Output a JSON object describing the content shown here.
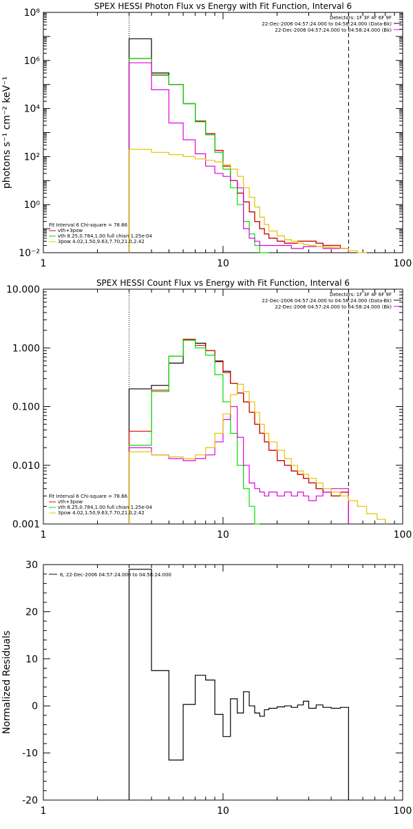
{
  "chart_data": [
    {
      "type": "step",
      "title": "SPEX HESSI Photon Flux vs Energy with Fit Function, Interval 6",
      "ylabel": "photons s⁻¹ cm⁻² keV⁻¹",
      "xlabel": "",
      "xscale": "log",
      "yscale": "log",
      "xlim": [
        1,
        100
      ],
      "ylim": [
        0.01,
        100000000
      ],
      "xticks": [
        "1",
        "10",
        "100"
      ],
      "yticks": [
        "10⁸",
        "10⁶",
        "10⁴",
        "10²",
        "10⁰",
        "10⁻²"
      ],
      "vlines": [
        {
          "x": 3.0,
          "style": "dotted"
        },
        {
          "x": 50.0,
          "style": "dashed"
        }
      ],
      "legend_top": [
        "Detectors: 1F 3F 4F 6F 9F",
        "22-Dec-2006 04:57:24.000 to 04:58:24.000 (Data-Bk)",
        "22-Dec-2006 04:57:24.000 to 04:58:24.000 (Bk)"
      ],
      "legend_bottom": [
        "Fit Interval 6   Chi-square = 78.66",
        "vth+3pow",
        "vth 8.25,0.784,1.00  full chian 1.25e-04",
        "3pow 4.02,1.50,9.63,7.70,21.0,2.42"
      ],
      "edges": [
        3,
        4,
        5,
        6,
        7,
        8,
        9,
        10,
        11,
        12,
        13,
        14,
        15,
        16,
        17,
        18,
        20,
        22,
        24,
        26,
        28,
        30,
        33,
        36,
        40,
        45,
        50,
        56,
        63
      ],
      "series": [
        {
          "color": "#000000",
          "values": [
            8000000,
            300000,
            100000,
            16000,
            3000,
            900,
            180,
            40,
            10,
            3,
            1.3,
            0.5,
            0.2,
            0.1,
            0.06,
            0.04,
            0.03,
            0.025,
            0.025,
            0.03,
            0.03,
            0.03,
            0.025,
            0.02,
            0.02,
            0.015,
            null,
            null
          ]
        },
        {
          "color": "#e60000",
          "values": [
            1200000,
            250000,
            100000,
            16000,
            3000,
            900,
            180,
            40,
            10,
            3,
            1.3,
            0.5,
            0.2,
            0.1,
            0.06,
            0.04,
            0.03,
            0.025,
            0.025,
            0.03,
            0.03,
            0.03,
            0.025,
            0.02,
            0.02,
            0.015,
            null,
            null
          ]
        },
        {
          "color": "#00dd00",
          "values": [
            1200000,
            240000,
            100000,
            16000,
            2800,
            800,
            150,
            30,
            5,
            1,
            0.2,
            0.06,
            0.02,
            0.01,
            0.005,
            null,
            null,
            null,
            null,
            null,
            null,
            null,
            null,
            null,
            null,
            null,
            null,
            null
          ]
        },
        {
          "color": "#dd00dd",
          "values": [
            800000,
            60000,
            2500,
            500,
            130,
            40,
            20,
            15,
            10,
            5,
            0.1,
            0.04,
            0.03,
            0.02,
            0.02,
            0.02,
            0.02,
            0.02,
            0.015,
            0.015,
            0.018,
            0.018,
            0.018,
            0.015,
            0.015,
            0.015,
            null,
            null
          ]
        },
        {
          "color": "#e6c000",
          "values": [
            200,
            150,
            120,
            100,
            80,
            70,
            60,
            45,
            30,
            15,
            5,
            2,
            0.8,
            0.3,
            0.15,
            0.08,
            0.05,
            0.035,
            0.03,
            0.025,
            0.022,
            0.02,
            0.018,
            0.017,
            0.016,
            0.015,
            0.012,
            0.01
          ]
        }
      ]
    },
    {
      "type": "step",
      "title": "SPEX HESSI Count Flux vs Energy with Fit Function, Interval 6",
      "ylabel": "",
      "xlabel": "",
      "xscale": "log",
      "yscale": "log",
      "xlim": [
        1,
        100
      ],
      "ylim": [
        0.001,
        10
      ],
      "xticks": [
        "1",
        "10",
        "100"
      ],
      "yticks": [
        "10.000",
        "1.000",
        "0.100",
        "0.010",
        "0.001"
      ],
      "vlines": [
        {
          "x": 3.0,
          "style": "dotted"
        },
        {
          "x": 50.0,
          "style": "dashed"
        }
      ],
      "legend_top": [
        "Detectors: 1F 3F 4F 6F 9F",
        "22-Dec-2006 04:57:24.000 to 04:58:24.000 (Data-Bk)",
        "22-Dec-2006 04:57:24.000 to 04:58:24.000 (Bk)"
      ],
      "legend_bottom": [
        "Fit Interval 6   Chi-square = 78.66",
        "vth+3pow",
        "vth 8.25,0.784,1.00  full chian 1.25e-04",
        "3pow 4.02,1.50,9.63,7.70,21.0,2.42"
      ],
      "edges": [
        3,
        4,
        5,
        6,
        7,
        8,
        9,
        10,
        11,
        12,
        13,
        14,
        15,
        16,
        17,
        18,
        20,
        22,
        24,
        26,
        28,
        30,
        33,
        36,
        40,
        45,
        50,
        56,
        63,
        72,
        80
      ],
      "series": [
        {
          "color": "#000000",
          "values": [
            0.2,
            0.23,
            0.55,
            1.4,
            1.2,
            0.9,
            0.6,
            0.4,
            0.25,
            0.17,
            0.12,
            0.08,
            0.05,
            0.035,
            0.025,
            0.018,
            0.012,
            0.01,
            0.008,
            0.007,
            0.006,
            0.005,
            0.004,
            0.0035,
            0.003,
            0.0035,
            null,
            null,
            null,
            null
          ]
        },
        {
          "color": "#e60000",
          "values": [
            0.038,
            0.19,
            0.72,
            1.4,
            1.1,
            0.9,
            0.58,
            0.38,
            0.25,
            0.17,
            0.12,
            0.08,
            0.05,
            0.035,
            0.025,
            0.018,
            0.012,
            0.01,
            0.008,
            0.007,
            0.006,
            0.005,
            0.004,
            0.0035,
            0.003,
            0.0035,
            null,
            null,
            null,
            null
          ]
        },
        {
          "color": "#00dd00",
          "values": [
            0.022,
            0.18,
            0.72,
            1.35,
            1.0,
            0.75,
            0.35,
            0.12,
            0.035,
            0.01,
            0.004,
            0.002,
            0.001,
            null,
            null,
            null,
            null,
            null,
            null,
            null,
            null,
            null,
            null,
            null,
            null,
            null,
            null,
            null,
            null,
            null
          ]
        },
        {
          "color": "#dd00dd",
          "values": [
            0.02,
            0.015,
            0.013,
            0.012,
            0.013,
            0.015,
            0.025,
            0.06,
            0.1,
            0.03,
            0.01,
            0.005,
            0.004,
            0.0035,
            0.003,
            0.0035,
            0.003,
            0.0035,
            0.003,
            0.0035,
            0.003,
            0.0025,
            0.003,
            0.0035,
            0.004,
            0.004,
            null,
            null,
            null,
            null
          ]
        },
        {
          "color": "#e6c000",
          "values": [
            0.017,
            0.015,
            0.014,
            0.013,
            0.015,
            0.02,
            0.035,
            0.075,
            0.16,
            0.24,
            0.18,
            0.12,
            0.08,
            0.05,
            0.035,
            0.025,
            0.018,
            0.013,
            0.01,
            0.008,
            0.007,
            0.006,
            0.005,
            0.004,
            0.0035,
            0.003,
            0.0025,
            0.002,
            0.0015,
            0.0012
          ]
        }
      ]
    },
    {
      "type": "step",
      "title": "",
      "ylabel": "Normalized Residuals",
      "xlabel": "",
      "xscale": "log",
      "yscale": "linear",
      "xlim": [
        1,
        100
      ],
      "ylim": [
        -20,
        30
      ],
      "xticks": [
        "1",
        "10",
        "100"
      ],
      "yticks": [
        "30",
        "20",
        "10",
        "0",
        "-10",
        "-20"
      ],
      "legend_top": [
        "6, 22-Dec-2006 04:57:24.000 to 04:58:24.000"
      ],
      "edges": [
        3,
        4,
        5,
        6,
        7,
        8,
        9,
        10,
        11,
        12,
        13,
        14,
        15,
        16,
        17,
        18,
        20,
        22,
        24,
        26,
        28,
        30,
        33,
        36,
        40,
        45,
        50
      ],
      "series": [
        {
          "color": "#000000",
          "values": [
            29,
            7.5,
            -11.5,
            0.3,
            6.5,
            5.5,
            -1.8,
            -6.5,
            1.5,
            -1.5,
            3,
            0,
            -1.5,
            -2.2,
            -0.8,
            -0.5,
            -0.2,
            0,
            -0.3,
            0.2,
            1,
            -0.5,
            0.2,
            -0.3,
            -0.5,
            -0.3
          ]
        }
      ]
    }
  ]
}
